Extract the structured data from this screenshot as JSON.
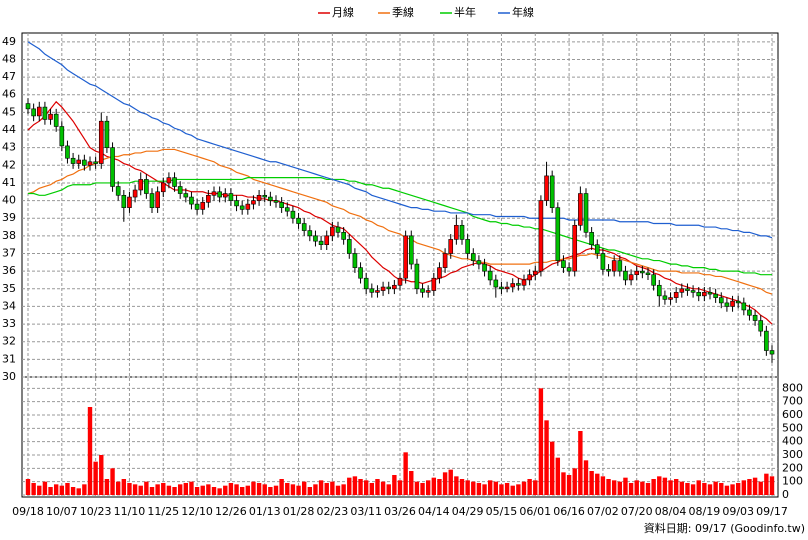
{
  "chart_data": {
    "type": "candlestick",
    "categories": [
      "09/18",
      null,
      null,
      null,
      null,
      null,
      "10/07",
      null,
      null,
      null,
      null,
      null,
      "10/23",
      null,
      null,
      null,
      null,
      null,
      "11/10",
      null,
      null,
      null,
      null,
      null,
      "11/25",
      null,
      null,
      null,
      null,
      null,
      "12/10",
      null,
      null,
      null,
      null,
      null,
      "12/26",
      null,
      null,
      null,
      null,
      null,
      "01/13",
      null,
      null,
      null,
      null,
      null,
      "01/28",
      null,
      null,
      null,
      null,
      null,
      "02/23",
      null,
      null,
      null,
      null,
      null,
      "03/11",
      null,
      null,
      null,
      null,
      null,
      "03/26",
      null,
      null,
      null,
      null,
      null,
      "04/14",
      null,
      null,
      null,
      null,
      null,
      "04/29",
      null,
      null,
      null,
      null,
      null,
      "05/15",
      null,
      null,
      null,
      null,
      null,
      "06/01",
      null,
      null,
      null,
      null,
      null,
      "06/16",
      null,
      null,
      null,
      null,
      null,
      "07/02",
      null,
      null,
      null,
      null,
      null,
      "07/20",
      null,
      null,
      null,
      null,
      null,
      "08/04",
      null,
      null,
      null,
      null,
      null,
      "08/19",
      null,
      null,
      null,
      null,
      null,
      "09/03",
      null,
      null,
      null,
      null,
      null,
      "09/17"
    ],
    "open": [
      45.5,
      45.2,
      44.8,
      45.3,
      44.6,
      44.9,
      44.2,
      43.1,
      42.4,
      42.1,
      42.3,
      42.0,
      42.2,
      42.1,
      44.5,
      43.0,
      40.8,
      40.3,
      39.6,
      40.2,
      40.6,
      41.2,
      40.4,
      39.6,
      40.5,
      41.0,
      41.3,
      40.8,
      40.4,
      40.2,
      39.8,
      39.5,
      39.9,
      40.3,
      40.5,
      40.2,
      40.4,
      40.0,
      39.7,
      39.5,
      39.8,
      40.0,
      40.3,
      40.2,
      40.0,
      39.9,
      39.6,
      39.4,
      39.0,
      38.7,
      38.3,
      38.0,
      37.7,
      37.5,
      38.0,
      38.5,
      38.2,
      37.8,
      37.0,
      36.2,
      35.6,
      35.0,
      34.8,
      34.9,
      35.1,
      35.0,
      35.2,
      35.6,
      38.0,
      36.4,
      35.0,
      34.8,
      34.9,
      35.6,
      36.2,
      37.0,
      37.8,
      38.6,
      37.8,
      37.0,
      36.6,
      36.4,
      36.0,
      35.5,
      35.1,
      35.0,
      35.1,
      35.3,
      35.2,
      35.5,
      35.8,
      36.0,
      40.0,
      41.4,
      39.6,
      36.6,
      36.2,
      36.0,
      38.6,
      40.4,
      38.2,
      37.5,
      37.0,
      36.1,
      36.0,
      36.6,
      36.0,
      35.5,
      35.8,
      36.0,
      35.9,
      35.8,
      35.2,
      34.6,
      34.4,
      34.5,
      34.8,
      35.0,
      34.9,
      34.8,
      34.6,
      34.8,
      34.7,
      34.5,
      34.2,
      34.0,
      34.3,
      34.2,
      33.8,
      33.5,
      33.2,
      32.6,
      31.5
    ],
    "high": [
      45.8,
      45.5,
      45.6,
      45.6,
      45.2,
      45.2,
      44.5,
      43.4,
      42.7,
      42.6,
      42.6,
      42.5,
      42.5,
      45.0,
      44.8,
      43.3,
      41.1,
      40.6,
      40.5,
      40.9,
      41.6,
      41.5,
      40.7,
      40.8,
      41.3,
      41.6,
      41.6,
      41.1,
      40.7,
      40.5,
      40.1,
      40.2,
      40.6,
      40.8,
      40.8,
      40.7,
      40.7,
      40.3,
      40.0,
      40.1,
      40.3,
      40.6,
      40.6,
      40.5,
      40.3,
      40.2,
      39.9,
      39.7,
      39.3,
      39.0,
      38.6,
      38.3,
      38.0,
      38.3,
      38.8,
      38.8,
      38.5,
      38.1,
      37.3,
      36.5,
      35.9,
      35.3,
      35.2,
      35.4,
      35.4,
      35.5,
      35.9,
      38.3,
      38.3,
      36.7,
      35.3,
      35.2,
      35.9,
      36.5,
      37.3,
      38.1,
      39.2,
      38.9,
      38.1,
      37.3,
      36.9,
      36.7,
      36.3,
      35.8,
      35.4,
      35.4,
      35.6,
      35.6,
      35.8,
      36.1,
      36.3,
      40.3,
      42.2,
      41.7,
      39.9,
      36.9,
      36.5,
      38.9,
      40.8,
      40.7,
      38.5,
      37.8,
      37.3,
      36.4,
      36.9,
      36.9,
      36.3,
      36.1,
      36.3,
      36.3,
      36.2,
      36.1,
      35.5,
      34.9,
      34.8,
      35.1,
      35.3,
      35.3,
      35.2,
      35.1,
      35.1,
      35.1,
      35.0,
      34.8,
      34.5,
      34.6,
      34.6,
      34.5,
      34.1,
      33.8,
      33.5,
      32.9,
      31.8
    ],
    "low": [
      44.9,
      44.5,
      44.5,
      44.3,
      44.3,
      43.9,
      42.8,
      42.1,
      41.8,
      41.8,
      41.7,
      41.7,
      41.8,
      41.8,
      42.7,
      40.5,
      40.0,
      38.8,
      39.3,
      39.9,
      40.3,
      40.1,
      39.3,
      39.3,
      40.2,
      40.7,
      40.5,
      40.1,
      39.9,
      39.5,
      39.2,
      39.2,
      39.6,
      40.0,
      39.9,
      39.9,
      39.7,
      39.4,
      39.2,
      39.2,
      39.5,
      39.7,
      39.9,
      39.7,
      39.6,
      39.3,
      39.1,
      38.7,
      38.4,
      38.0,
      37.7,
      37.4,
      37.2,
      37.2,
      37.7,
      37.9,
      37.5,
      36.7,
      35.9,
      35.3,
      34.7,
      34.5,
      34.5,
      34.6,
      34.7,
      34.7,
      34.9,
      35.3,
      36.1,
      34.7,
      34.5,
      34.5,
      34.6,
      35.3,
      35.9,
      36.7,
      37.5,
      37.5,
      36.7,
      36.3,
      36.1,
      35.7,
      35.2,
      34.5,
      34.7,
      34.8,
      34.8,
      34.9,
      34.9,
      35.2,
      35.5,
      35.7,
      39.7,
      39.3,
      36.3,
      35.9,
      35.7,
      35.7,
      38.3,
      37.9,
      37.2,
      36.7,
      35.8,
      35.7,
      35.7,
      35.7,
      35.2,
      35.2,
      35.5,
      35.6,
      35.5,
      34.9,
      34.0,
      34.1,
      34.1,
      34.2,
      34.5,
      34.6,
      34.5,
      34.3,
      34.3,
      34.4,
      34.2,
      33.9,
      33.7,
      33.7,
      33.9,
      33.5,
      33.2,
      32.9,
      32.3,
      31.2,
      30.8
    ],
    "close": [
      45.2,
      44.8,
      45.3,
      44.6,
      44.9,
      44.2,
      43.1,
      42.4,
      42.1,
      42.3,
      42.0,
      42.2,
      42.1,
      44.5,
      43.0,
      40.8,
      40.3,
      39.6,
      40.2,
      40.6,
      41.2,
      40.4,
      39.6,
      40.5,
      41.0,
      41.3,
      40.8,
      40.4,
      40.2,
      39.8,
      39.5,
      39.9,
      40.3,
      40.5,
      40.2,
      40.4,
      40.0,
      39.7,
      39.5,
      39.8,
      40.0,
      40.3,
      40.2,
      40.0,
      39.9,
      39.6,
      39.4,
      39.0,
      38.7,
      38.3,
      38.0,
      37.7,
      37.5,
      38.0,
      38.5,
      38.2,
      37.8,
      37.0,
      36.2,
      35.6,
      35.0,
      34.8,
      34.9,
      35.1,
      35.0,
      35.2,
      35.6,
      38.0,
      36.4,
      35.0,
      34.8,
      34.9,
      35.6,
      36.2,
      37.0,
      37.8,
      38.6,
      37.8,
      37.0,
      36.6,
      36.4,
      36.0,
      35.5,
      35.1,
      35.0,
      35.1,
      35.3,
      35.2,
      35.5,
      35.8,
      36.0,
      40.0,
      41.4,
      39.6,
      36.6,
      36.2,
      36.0,
      38.6,
      40.4,
      38.2,
      37.5,
      37.0,
      36.1,
      36.0,
      36.6,
      36.0,
      35.5,
      35.8,
      36.0,
      35.9,
      35.8,
      35.2,
      34.6,
      34.4,
      34.5,
      34.8,
      35.0,
      34.9,
      34.8,
      34.6,
      34.8,
      34.7,
      34.5,
      34.2,
      34.0,
      34.3,
      34.2,
      33.8,
      33.5,
      33.2,
      32.6,
      31.5,
      31.3
    ],
    "up_color": "#ff0000",
    "down_color": "#00c000",
    "ylim": [
      30,
      49.5
    ],
    "yticks": [
      30,
      31,
      32,
      33,
      34,
      35,
      36,
      37,
      38,
      39,
      40,
      41,
      42,
      43,
      44,
      45,
      46,
      47,
      48,
      49
    ],
    "grid": true,
    "series": [
      {
        "name": "月線",
        "color": "#dd0000",
        "values": [
          44.0,
          44.3,
          44.5,
          44.8,
          45.2,
          45.6,
          45.3,
          44.9,
          44.5,
          44.0,
          43.5,
          43.0,
          42.8,
          42.7,
          42.5,
          42.4,
          42.3,
          42.1,
          42.0,
          41.8,
          41.7,
          41.5,
          41.3,
          41.1,
          41.0,
          40.8,
          40.6,
          40.6,
          40.6,
          40.5,
          40.5,
          40.5,
          40.4,
          40.4,
          40.4,
          40.3,
          40.3,
          40.3,
          40.3,
          40.2,
          40.2,
          40.1,
          40.1,
          40.0,
          40.0,
          39.9,
          39.8,
          39.7,
          39.6,
          39.4,
          39.3,
          39.1,
          39.0,
          38.8,
          38.6,
          38.5,
          38.4,
          38.1,
          37.8,
          37.5,
          37.2,
          36.8,
          36.5,
          36.2,
          36.0,
          35.7,
          35.5,
          35.5,
          35.4,
          35.4,
          35.3,
          35.4,
          35.5,
          35.6,
          35.7,
          35.9,
          36.0,
          36.2,
          36.3,
          36.4,
          36.5,
          36.4,
          36.3,
          36.1,
          36.0,
          35.9,
          35.8,
          35.6,
          35.5,
          35.6,
          35.8,
          36.0,
          36.2,
          36.4,
          36.5,
          36.7,
          36.8,
          36.9,
          37.0,
          37.2,
          37.3,
          37.2,
          37.2,
          37.1,
          37.0,
          36.8,
          36.7,
          36.5,
          36.3,
          36.2,
          36.1,
          35.9,
          35.8,
          35.6,
          35.5,
          35.3,
          35.2,
          35.1,
          35.0,
          35.0,
          34.9,
          34.8,
          34.7,
          34.6,
          34.5,
          34.4,
          34.3,
          34.1,
          34.0,
          33.8,
          33.5,
          33.3,
          33.0
        ]
      },
      {
        "name": "季線",
        "color": "#f07010",
        "values": [
          40.4,
          40.5,
          40.7,
          40.8,
          40.9,
          41.1,
          41.2,
          41.4,
          41.5,
          41.7,
          41.8,
          42.0,
          42.1,
          42.3,
          42.4,
          42.5,
          42.5,
          42.6,
          42.6,
          42.7,
          42.7,
          42.8,
          42.8,
          42.8,
          42.9,
          42.9,
          42.9,
          42.8,
          42.7,
          42.6,
          42.5,
          42.4,
          42.3,
          42.2,
          42.0,
          41.9,
          41.8,
          41.6,
          41.5,
          41.4,
          41.2,
          41.1,
          41.0,
          40.9,
          40.8,
          40.7,
          40.6,
          40.5,
          40.4,
          40.3,
          40.2,
          40.1,
          40.0,
          39.9,
          39.7,
          39.6,
          39.5,
          39.3,
          39.2,
          39.1,
          38.9,
          38.8,
          38.6,
          38.5,
          38.3,
          38.2,
          38.1,
          37.9,
          37.8,
          37.6,
          37.5,
          37.4,
          37.3,
          37.2,
          37.0,
          36.9,
          36.8,
          36.7,
          36.7,
          36.6,
          36.5,
          36.5,
          36.4,
          36.4,
          36.4,
          36.4,
          36.4,
          36.4,
          36.4,
          36.4,
          36.5,
          36.5,
          36.5,
          36.6,
          36.6,
          36.7,
          36.7,
          36.8,
          36.9,
          36.9,
          37.0,
          36.9,
          36.9,
          36.8,
          36.7,
          36.7,
          36.6,
          36.5,
          36.4,
          36.3,
          36.2,
          36.1,
          36.0,
          36.0,
          36.0,
          36.0,
          35.9,
          35.9,
          35.9,
          35.9,
          35.8,
          35.8,
          35.7,
          35.7,
          35.6,
          35.5,
          35.4,
          35.3,
          35.2,
          35.1,
          35.0,
          34.8,
          34.7
        ]
      },
      {
        "name": "半年",
        "color": "#00cc00",
        "values": [
          40.4,
          40.4,
          40.3,
          40.3,
          40.4,
          40.5,
          40.6,
          40.8,
          40.9,
          40.9,
          40.9,
          40.9,
          41.0,
          41.0,
          41.0,
          41.0,
          41.0,
          41.0,
          41.0,
          41.1,
          41.1,
          41.1,
          41.1,
          41.1,
          41.1,
          41.1,
          41.2,
          41.2,
          41.2,
          41.2,
          41.2,
          41.2,
          41.2,
          41.2,
          41.2,
          41.2,
          41.2,
          41.2,
          41.2,
          41.3,
          41.3,
          41.3,
          41.3,
          41.3,
          41.3,
          41.3,
          41.3,
          41.3,
          41.3,
          41.3,
          41.3,
          41.3,
          41.3,
          41.2,
          41.2,
          41.2,
          41.2,
          41.1,
          41.1,
          41.0,
          40.9,
          40.9,
          40.8,
          40.7,
          40.7,
          40.6,
          40.5,
          40.4,
          40.3,
          40.2,
          40.1,
          40.0,
          39.9,
          39.8,
          39.7,
          39.6,
          39.5,
          39.4,
          39.3,
          39.1,
          39.0,
          38.9,
          38.8,
          38.8,
          38.7,
          38.7,
          38.6,
          38.6,
          38.5,
          38.5,
          38.4,
          38.4,
          38.3,
          38.2,
          38.1,
          38.0,
          37.9,
          37.8,
          37.7,
          37.6,
          37.5,
          37.4,
          37.3,
          37.2,
          37.2,
          37.1,
          37.0,
          36.9,
          36.8,
          36.7,
          36.7,
          36.6,
          36.6,
          36.5,
          36.4,
          36.4,
          36.3,
          36.3,
          36.2,
          36.2,
          36.2,
          36.1,
          36.1,
          36.0,
          36.0,
          36.0,
          36.0,
          35.9,
          35.9,
          35.9,
          35.8,
          35.8,
          35.8
        ]
      },
      {
        "name": "年線",
        "color": "#1f5fd0",
        "values": [
          49.0,
          48.8,
          48.6,
          48.3,
          48.1,
          47.9,
          47.7,
          47.4,
          47.2,
          47.0,
          46.8,
          46.6,
          46.5,
          46.3,
          46.1,
          45.9,
          45.7,
          45.5,
          45.4,
          45.2,
          45.0,
          44.9,
          44.7,
          44.6,
          44.4,
          44.3,
          44.1,
          44.0,
          43.8,
          43.7,
          43.5,
          43.4,
          43.3,
          43.2,
          43.1,
          43.0,
          42.9,
          42.8,
          42.7,
          42.6,
          42.5,
          42.4,
          42.3,
          42.2,
          42.2,
          42.1,
          42.0,
          41.9,
          41.8,
          41.7,
          41.6,
          41.5,
          41.4,
          41.3,
          41.2,
          41.1,
          41.0,
          40.9,
          40.7,
          40.6,
          40.5,
          40.3,
          40.2,
          40.1,
          40.0,
          39.9,
          39.8,
          39.7,
          39.6,
          39.6,
          39.5,
          39.5,
          39.4,
          39.4,
          39.4,
          39.3,
          39.3,
          39.3,
          39.3,
          39.2,
          39.2,
          39.2,
          39.2,
          39.1,
          39.1,
          39.1,
          39.1,
          39.1,
          39.1,
          39.0,
          39.0,
          39.0,
          39.0,
          39.0,
          39.0,
          39.0,
          38.9,
          38.9,
          38.9,
          38.9,
          38.9,
          38.9,
          38.9,
          38.9,
          38.9,
          38.8,
          38.8,
          38.8,
          38.8,
          38.8,
          38.8,
          38.7,
          38.7,
          38.7,
          38.7,
          38.6,
          38.6,
          38.6,
          38.6,
          38.6,
          38.5,
          38.5,
          38.5,
          38.4,
          38.4,
          38.3,
          38.3,
          38.2,
          38.2,
          38.1,
          38.0,
          38.0,
          37.9
        ]
      }
    ],
    "volume": {
      "color": "#ff0000",
      "ylim": [
        0,
        840
      ],
      "yticks": [
        0,
        100,
        200,
        300,
        400,
        500,
        600,
        700,
        800
      ],
      "values": [
        120,
        90,
        70,
        100,
        60,
        80,
        70,
        90,
        60,
        50,
        80,
        660,
        250,
        300,
        120,
        200,
        100,
        120,
        90,
        80,
        70,
        100,
        60,
        80,
        90,
        70,
        60,
        80,
        90,
        100,
        60,
        70,
        80,
        60,
        50,
        70,
        90,
        80,
        60,
        70,
        100,
        90,
        80,
        60,
        70,
        120,
        90,
        80,
        70,
        100,
        60,
        80,
        110,
        90,
        100,
        70,
        80,
        130,
        140,
        120,
        110,
        90,
        120,
        100,
        80,
        150,
        110,
        320,
        180,
        100,
        90,
        110,
        130,
        120,
        170,
        190,
        140,
        120,
        110,
        100,
        90,
        80,
        110,
        100,
        80,
        90,
        70,
        80,
        100,
        120,
        110,
        800,
        560,
        400,
        280,
        170,
        150,
        200,
        480,
        260,
        180,
        160,
        140,
        120,
        110,
        100,
        130,
        90,
        110,
        100,
        90,
        120,
        140,
        130,
        110,
        120,
        100,
        90,
        80,
        110,
        90,
        80,
        100,
        90,
        70,
        80,
        90,
        110,
        120,
        130,
        100,
        160,
        140
      ]
    },
    "footer": "資料日期: 09/17  (Goodinfo.tw)"
  }
}
